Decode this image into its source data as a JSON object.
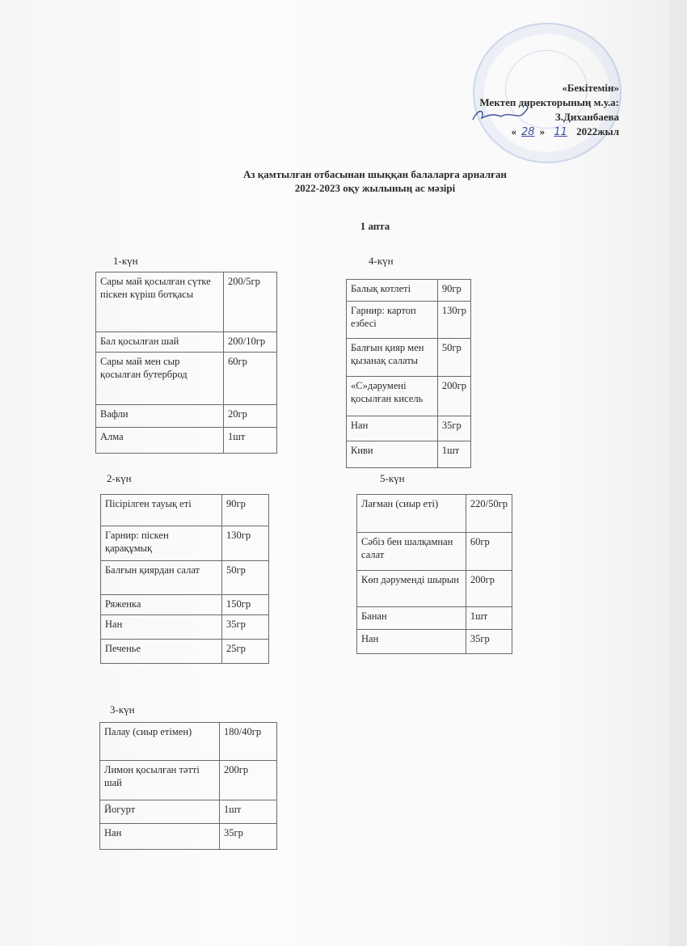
{
  "approval": {
    "line1": "«Бекітемін»",
    "line2": "Мектеп директорының м.у.а:",
    "line3": "З.Диханбаева",
    "line4_open": "«",
    "day_handwritten": "28",
    "line4_mid": "»",
    "month_handwritten": "11",
    "line4_year": "2022жыл"
  },
  "title": {
    "line1": "Аз қамтылған отбасынан шыққан балаларға арналған",
    "line2": "2022-2023 оқу жылының ас мәзірі",
    "week": "1 апта"
  },
  "days": [
    {
      "label": "1-күн",
      "rows": [
        [
          "Сары май қосылған сүтке піскен күріш ботқасы",
          "200/5гр"
        ],
        [
          "Бал қосылған шай",
          "200/10гр"
        ],
        [
          "Сары май мен сыр қосылған бутерброд",
          "60гр"
        ],
        [
          "Вафли",
          "20гр"
        ],
        [
          "Алма",
          "1шт"
        ]
      ]
    },
    {
      "label": "2-күн",
      "rows": [
        [
          "Пісірілген тауық еті",
          "90гр"
        ],
        [
          "Гарнир: піскен қарақұмық",
          "130гр"
        ],
        [
          "Балғын қиярдан салат",
          "50гр"
        ],
        [
          "Ряженка",
          "150гр"
        ],
        [
          "Нан",
          "35гр"
        ],
        [
          "Печенье",
          "25гр"
        ]
      ]
    },
    {
      "label": "3-күн",
      "rows": [
        [
          "Палау (сиыр етімен)",
          "180/40гр"
        ],
        [
          "Лимон қосылған тәтті шай",
          "200гр"
        ],
        [
          "Йогурт",
          "1шт"
        ],
        [
          "Нан",
          "35гр"
        ]
      ]
    },
    {
      "label": "4-күн",
      "rows": [
        [
          "Балық котлеті",
          "90гр"
        ],
        [
          "Гарнир: картоп езбесі",
          "130гр"
        ],
        [
          "Балғын қияр мен қызанақ салаты",
          "50гр"
        ],
        [
          "«С»дәрумені қосылған кисель",
          "200гр"
        ],
        [
          "Нан",
          "35гр"
        ],
        [
          "Киви",
          "1шт"
        ]
      ]
    },
    {
      "label": "5-күн",
      "rows": [
        [
          "Лағман (сиыр еті)",
          "220/50гр"
        ],
        [
          "Сәбіз бен шалқамнан салат",
          "60гр"
        ],
        [
          "Көп дәрумендi шырын",
          "200гр"
        ],
        [
          "Банан",
          "1шт"
        ],
        [
          "Нан",
          "35гр"
        ]
      ]
    }
  ],
  "colors": {
    "stamp": "#8aa5dc",
    "ink": "#2a2a2a"
  }
}
